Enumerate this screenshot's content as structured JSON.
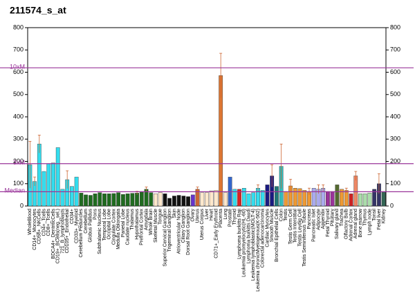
{
  "chart_data": {
    "type": "bar",
    "title": "211574_s_at",
    "categories": [
      "WholeBlood",
      "CD14+_Monocytes",
      "CD56+_NKCells",
      "CD4+_Tcells",
      "CD8+_Tcells",
      "BDCA4+_DentriticCells",
      "CD19+_BCells(neg._sel.)",
      "721_B_lymphoblasts",
      "CD105+_Endothelial",
      "CD34+",
      "CD33+_Myeloid",
      "Cerebellum Peduncles",
      "Cerebellum",
      "Globus Pallidus",
      "Pons",
      "Subthalamic Nucleus",
      "Temporal Lobe",
      "Occipital Lobe",
      "Cingulate Cortex",
      "Medulla Oblongata",
      "Parietal Lobe",
      "Caudate nucleus",
      "Thalamus",
      "Hypothalamus",
      "Prefrontal Cortex",
      "Amygdala",
      "Whole Brain",
      "Skeletal Muscle",
      "Tongue",
      "Superior Cervical Ganglion",
      "Trigeminal Ganglion",
      "Skin",
      "Atrioventricular Node",
      "Ciliary Ganglion",
      "Dorsal Root Ganglion",
      "Ovary",
      "Uterus",
      "Uterus Corpus",
      "Liver",
      "Heart",
      "CD71+_Early Erythroid",
      "Placenta",
      "Lung",
      "Prostate",
      "Thyroid",
      "Lymphoma burkitts Raji",
      "Leukemia promyelocytic(HL-60)",
      "Lymphoma burkitts Daudi",
      "Leukemia lymphoblastic(MOLT-4)",
      "Leukemia chronicMyelogenous(K-562)",
      "Colorectal adenocarcinoma",
      "Cardiac Myocytes",
      "Smooth Muscle",
      "Bronchial Epithelial Cells",
      "Colon",
      "Testis",
      "Testis Germ Cell",
      "Testis Interstitial",
      "Testis Leydig Cell",
      "Testis Seminiferous Tubule",
      "Pancreas",
      "Pancreatic Islet",
      "Adipocyte",
      "Appendix",
      "Fetal Thyroid",
      "Pituitary",
      "Salivary gland",
      "Trachea",
      "Olfactory Bulb",
      "Adrenal Cortex",
      "Adrenal gland",
      "Bone marrow",
      "Thymus",
      "Lymph node",
      "Tonsil",
      "Fetal liver",
      "Kidney"
    ],
    "values": [
      185,
      110,
      278,
      155,
      190,
      193,
      262,
      75,
      118,
      88,
      130,
      58,
      50,
      48,
      55,
      60,
      55,
      55,
      56,
      60,
      52,
      55,
      57,
      58,
      65,
      75,
      60,
      55,
      60,
      55,
      35,
      45,
      48,
      45,
      42,
      50,
      75,
      60,
      60,
      68,
      70,
      585,
      60,
      130,
      75,
      75,
      80,
      55,
      60,
      80,
      70,
      95,
      135,
      88,
      178,
      65,
      90,
      80,
      78,
      70,
      65,
      80,
      75,
      80,
      65,
      65,
      95,
      75,
      70,
      55,
      135,
      55,
      55,
      58,
      75,
      100,
      65
    ],
    "errors": [
      105,
      20,
      40,
      null,
      null,
      null,
      null,
      null,
      40,
      null,
      null,
      null,
      null,
      null,
      null,
      null,
      null,
      null,
      null,
      null,
      null,
      null,
      null,
      8,
      null,
      10,
      null,
      null,
      null,
      null,
      null,
      null,
      null,
      null,
      null,
      null,
      10,
      null,
      null,
      null,
      null,
      100,
      null,
      null,
      null,
      null,
      null,
      null,
      null,
      15,
      null,
      null,
      50,
      null,
      100,
      null,
      30,
      null,
      null,
      null,
      15,
      null,
      20,
      15,
      null,
      null,
      null,
      null,
      10,
      null,
      20,
      null,
      null,
      null,
      null,
      45,
      null
    ],
    "colors": [
      "#33ddee",
      "#33ddee",
      "#33ddee",
      "#33ddee",
      "#33ddee",
      "#33ddee",
      "#33ddee",
      "#33ddee",
      "#33ddee",
      "#33ddee",
      "#33ddee",
      "#1f6b1f",
      "#1f6b1f",
      "#1f6b1f",
      "#1f6b1f",
      "#1f6b1f",
      "#1f6b1f",
      "#1f6b1f",
      "#1f6b1f",
      "#1f6b1f",
      "#1f6b1f",
      "#1f6b1f",
      "#1f6b1f",
      "#1f6b1f",
      "#1f6b1f",
      "#1f6b1f",
      "#1f6b1f",
      "#ffe8cc",
      "#ffe8cc",
      "#111111",
      "#111111",
      "#111111",
      "#111111",
      "#111111",
      "#111111",
      "#6633cc",
      "#cc6633",
      "#ffe8cc",
      "#ffe8cc",
      "#ffe8cc",
      "#ffe8cc",
      "#dd7733",
      "#ffe8cc",
      "#3366cc",
      "#33ddee",
      "#dd2222",
      "#33ddee",
      "#33ddee",
      "#33ddee",
      "#33ddee",
      "#33ddee",
      "#1a1a80",
      "#1a1a80",
      "#227777",
      "#33bbbb",
      "#ee9933",
      "#ee9933",
      "#ee9933",
      "#ee9933",
      "#ee9933",
      "#ee9933",
      "#aaaaee",
      "#aaaaee",
      "#aaaaee",
      "#993399",
      "#993399",
      "#556b2f",
      "#ee9933",
      "#ee9933",
      "#cc2222",
      "#ee8866",
      "#aaddaa",
      "#aaddaa",
      "#aaddaa",
      "#333366",
      "#333366",
      "#336655"
    ],
    "ylim": [
      0,
      800
    ],
    "yticks": [
      0,
      100,
      200,
      300,
      400,
      500,
      600,
      700,
      800
    ],
    "reference_lines": [
      {
        "label": "10xM",
        "value": 620
      },
      {
        "label": "3xM",
        "value": 190
      },
      {
        "label": "Median",
        "value": 64
      }
    ],
    "reference_color": "#993399"
  }
}
